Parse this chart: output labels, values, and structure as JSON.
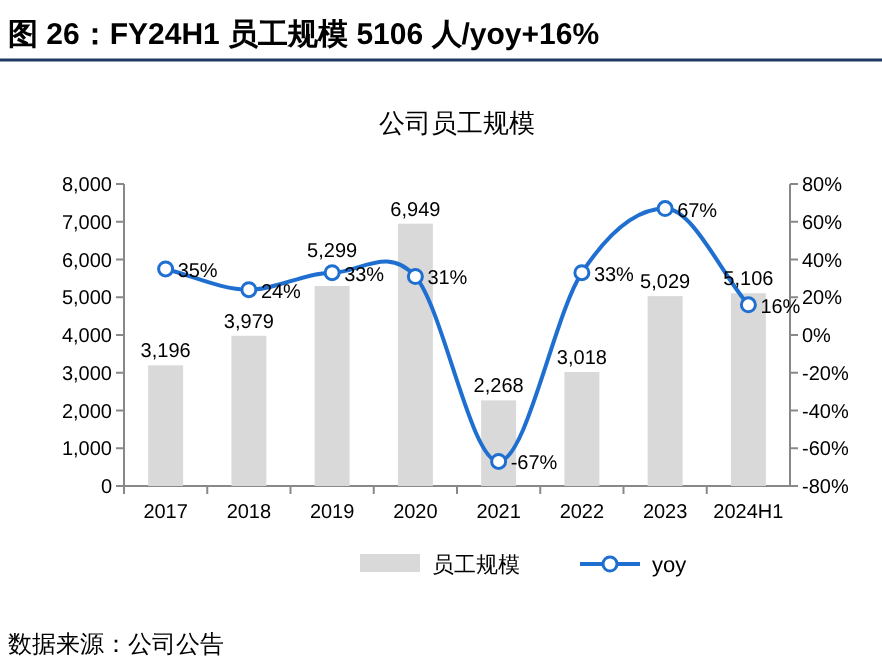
{
  "chart_data": {
    "type": "bar",
    "title": "图 26：FY24H1 员工规模 5106 人/yoy+16%",
    "subtitle": "公司员工规模",
    "categories": [
      "2017",
      "2018",
      "2019",
      "2020",
      "2021",
      "2022",
      "2023",
      "2024H1"
    ],
    "series": [
      {
        "name": "员工规模",
        "color": "#d9d9d9",
        "values": [
          3196,
          3979,
          5299,
          6949,
          2268,
          3018,
          5029,
          5106
        ],
        "value_labels": [
          "3,196",
          "3,979",
          "5,299",
          "6,949",
          "2,268",
          "3,018",
          "5,029",
          "5,106"
        ]
      },
      {
        "name": "yoy",
        "type": "line",
        "axis": "y2",
        "color": "#1f6fd1",
        "marker": "circle",
        "values": [
          35,
          24,
          33,
          31,
          -67,
          33,
          67,
          16
        ],
        "value_labels": [
          "35%",
          "24%",
          "33%",
          "31%",
          "-67%",
          "33%",
          "67%",
          "16%"
        ]
      }
    ],
    "ylim": [
      0,
      8000
    ],
    "yticks": [
      0,
      {
        "value": 1000,
        "label": "1,000"
      },
      {
        "value": 2000,
        "label": "2,000"
      },
      {
        "value": 3000,
        "label": "3,000"
      },
      {
        "value": 4000,
        "label": "4,000"
      },
      {
        "value": 5000,
        "label": "5,000"
      },
      {
        "value": 6000,
        "label": "6,000"
      },
      {
        "value": 7000,
        "label": "7,000"
      },
      {
        "value": 8000,
        "label": "8,000"
      }
    ],
    "y2lim": [
      -80,
      80
    ],
    "y2ticks": [
      {
        "value": -80,
        "label": "-80%"
      },
      {
        "value": -60,
        "label": "-60%"
      },
      {
        "value": -40,
        "label": "-40%"
      },
      {
        "value": -20,
        "label": "-20%"
      },
      {
        "value": 0,
        "label": "0%"
      },
      {
        "value": 20,
        "label": "20%"
      },
      {
        "value": 40,
        "label": "40%"
      },
      {
        "value": 60,
        "label": "60%"
      },
      {
        "value": 80,
        "label": "80%"
      }
    ],
    "grid": false,
    "legend": "bottom",
    "annotations": [
      "数据来源：公司公告"
    ]
  }
}
